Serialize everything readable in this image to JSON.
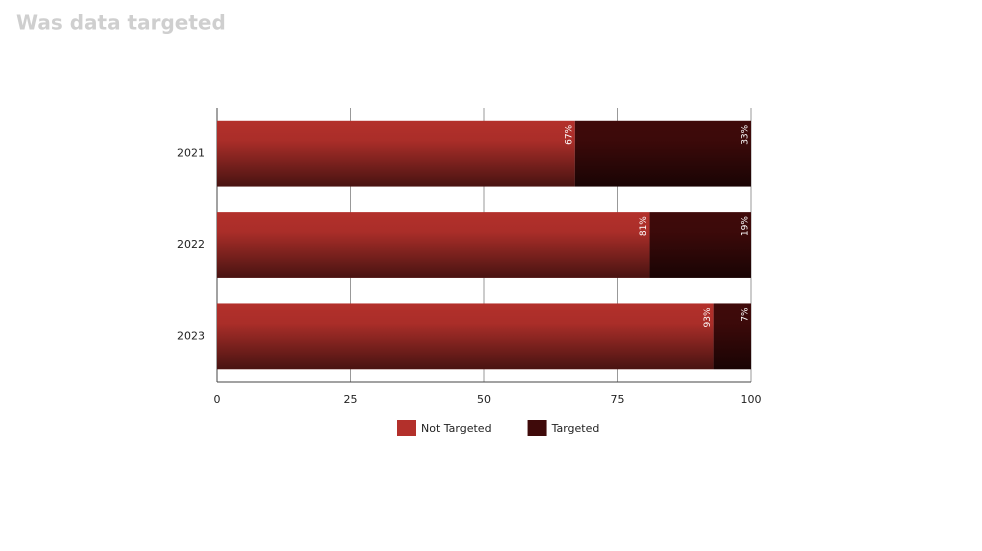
{
  "chart_data": {
    "type": "stacked-bar-horizontal",
    "title": "Was data targeted",
    "categories": [
      "2021",
      "2022",
      "2023"
    ],
    "series": [
      {
        "name": "Not Targeted",
        "color": "#b3302b",
        "values": [
          67,
          81,
          93
        ],
        "value_labels": [
          "67%",
          "81%",
          "93%"
        ]
      },
      {
        "name": "Targeted",
        "color": "#3f0a0a",
        "values": [
          33,
          19,
          7
        ],
        "value_labels": [
          "33%",
          "19%",
          "7%"
        ]
      }
    ],
    "xlim": [
      0,
      100
    ],
    "xticks": [
      0,
      25,
      50,
      75,
      100
    ],
    "grid": true,
    "legend": "bottom"
  }
}
